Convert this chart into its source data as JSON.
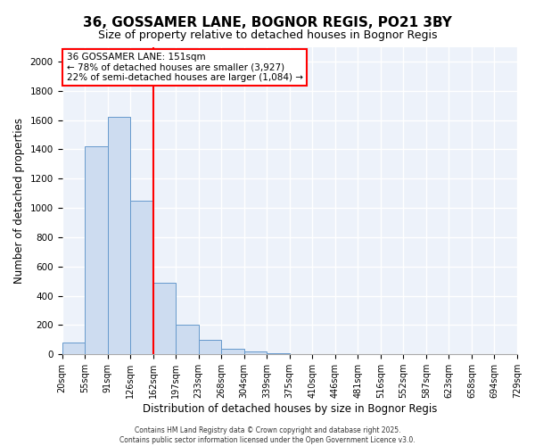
{
  "title": "36, GOSSAMER LANE, BOGNOR REGIS, PO21 3BY",
  "subtitle": "Size of property relative to detached houses in Bognor Regis",
  "xlabel": "Distribution of detached houses by size in Bognor Regis",
  "ylabel": "Number of detached properties",
  "bar_values": [
    80,
    1420,
    1620,
    1050,
    490,
    205,
    100,
    40,
    20,
    10,
    0,
    0,
    0,
    0,
    0,
    0,
    0,
    0,
    0,
    0
  ],
  "bar_labels": [
    "20sqm",
    "55sqm",
    "91sqm",
    "126sqm",
    "162sqm",
    "197sqm",
    "233sqm",
    "268sqm",
    "304sqm",
    "339sqm",
    "375sqm",
    "410sqm",
    "446sqm",
    "481sqm",
    "516sqm",
    "552sqm",
    "587sqm",
    "623sqm",
    "658sqm",
    "694sqm",
    "729sqm"
  ],
  "bar_color": "#cddcf0",
  "bar_edge_color": "#6699cc",
  "vline_color": "red",
  "vline_pos": 3.5,
  "ylim": [
    0,
    2100
  ],
  "yticks": [
    0,
    200,
    400,
    600,
    800,
    1000,
    1200,
    1400,
    1600,
    1800,
    2000
  ],
  "annotation_title": "36 GOSSAMER LANE: 151sqm",
  "annotation_line1": "← 78% of detached houses are smaller (3,927)",
  "annotation_line2": "22% of semi-detached houses are larger (1,084) →",
  "annotation_box_edgecolor": "red",
  "annotation_bg_color": "white",
  "footer1": "Contains HM Land Registry data © Crown copyright and database right 2025.",
  "footer2": "Contains public sector information licensed under the Open Government Licence v3.0.",
  "bg_color": "#edf2fa",
  "grid_color": "white",
  "title_fontsize": 11,
  "subtitle_fontsize": 9,
  "tick_fontsize": 7,
  "xlabel_fontsize": 8.5,
  "ylabel_fontsize": 8.5,
  "annotation_fontsize": 7.5,
  "footer_fontsize": 5.5
}
